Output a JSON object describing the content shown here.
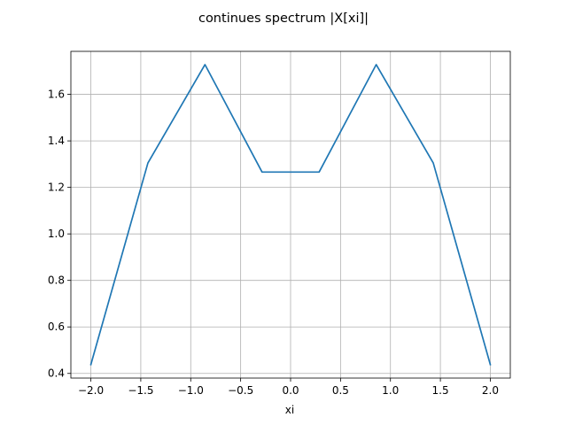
{
  "chart_data": {
    "type": "line",
    "title": "continues spectrum |X[xi]|",
    "xlabel": "xi",
    "ylabel": "",
    "xlim": [
      -2.2,
      2.2
    ],
    "ylim": [
      0.38,
      1.785
    ],
    "grid": true,
    "x_ticks": [
      -2.0,
      -1.5,
      -1.0,
      -0.5,
      0.0,
      0.5,
      1.0,
      1.5,
      2.0
    ],
    "x_tick_labels": [
      "−2.0",
      "−1.5",
      "−1.0",
      "−0.5",
      "0.0",
      "0.5",
      "1.0",
      "1.5",
      "2.0"
    ],
    "y_ticks": [
      0.4,
      0.6,
      0.8,
      1.0,
      1.2,
      1.4,
      1.6
    ],
    "y_tick_labels": [
      "0.4",
      "0.6",
      "0.8",
      "1.0",
      "1.2",
      "1.4",
      "1.6"
    ],
    "series": [
      {
        "name": "",
        "color": "#1f77b4",
        "x": [
          -2.0,
          -1.4286,
          -0.8571,
          -0.2857,
          0.2857,
          0.8571,
          1.4286,
          2.0
        ],
        "y": [
          0.438,
          1.305,
          1.728,
          1.266,
          1.266,
          1.728,
          1.305,
          0.438
        ]
      }
    ]
  }
}
